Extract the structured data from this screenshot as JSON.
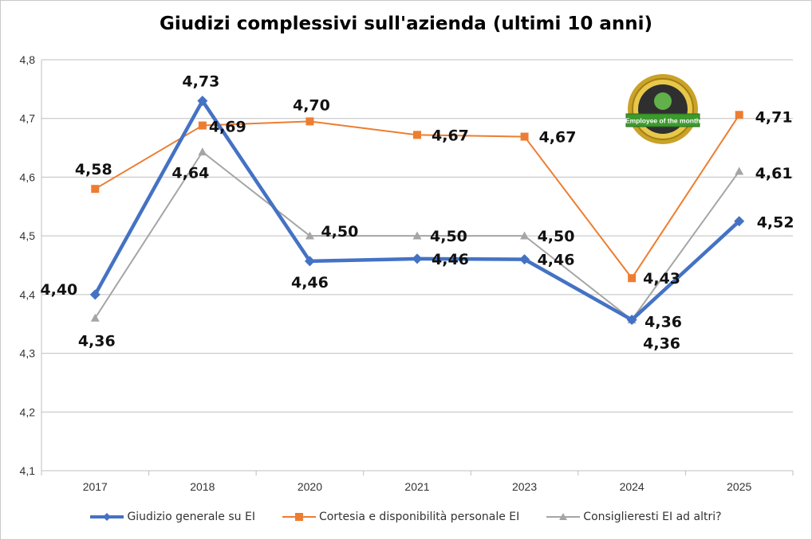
{
  "chart_data": {
    "type": "line",
    "title": "Giudizi complessivi sull'azienda (ultimi 10 anni)",
    "categories": [
      "2017",
      "2018",
      "2020",
      "2021",
      "2023",
      "2024",
      "2025"
    ],
    "ylim": [
      4.1,
      4.8
    ],
    "yticks": [
      "4,1",
      "4,2",
      "4,3",
      "4,4",
      "4,5",
      "4,6",
      "4,7",
      "4,8"
    ],
    "grid": true,
    "legend_position": "bottom",
    "series": [
      {
        "name": "Giudizio generale su EI",
        "color": "#4472C4",
        "marker": "diamond",
        "values": [
          4.4,
          4.73,
          4.457,
          4.461,
          4.46,
          4.357,
          4.525
        ],
        "labels": [
          "4,40",
          "4,73",
          "4,46",
          "4,46",
          "4,46",
          "4,36",
          "4,52"
        ]
      },
      {
        "name": "Cortesia e disponibilità personale EI",
        "color": "#ED7D31",
        "marker": "square",
        "values": [
          4.58,
          4.688,
          4.695,
          4.672,
          4.669,
          4.428,
          4.706
        ],
        "labels": [
          "4,58",
          "4,69",
          "4,70",
          "4,67",
          "4,67",
          "4,43",
          "4,71"
        ]
      },
      {
        "name": "Consiglieresti EI ad altri?",
        "color": "#A5A5A5",
        "marker": "triangle",
        "values": [
          4.36,
          4.643,
          4.5,
          4.5,
          4.5,
          4.357,
          4.61
        ],
        "labels": [
          "4,36",
          "4,64",
          "4,50",
          "4,50",
          "4,50",
          "4,36",
          "4,61"
        ]
      }
    ]
  },
  "badge": {
    "text": "Employee of the month",
    "icon": "employee-of-the-month-badge-icon"
  }
}
